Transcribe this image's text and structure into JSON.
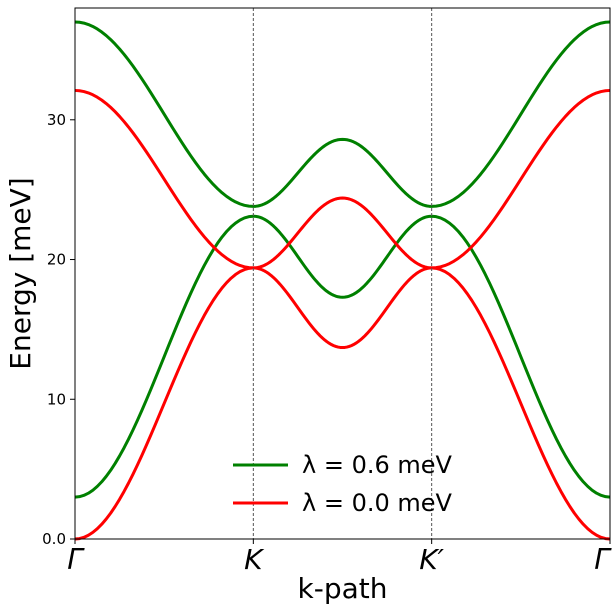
{
  "chart_data": {
    "type": "line",
    "xlabel": "k-path",
    "ylabel": "Energy [meV]",
    "ylim": [
      0,
      38
    ],
    "x_ticks": [
      "Γ",
      "K",
      "K′",
      "Γ"
    ],
    "y_ticks": [
      "0.0",
      "10",
      "20",
      "30"
    ],
    "grid": false,
    "vlines_at": [
      "K",
      "K′"
    ],
    "legend_position": "bottom-center",
    "colors": {
      "green": "#008000",
      "red": "#ff0000"
    },
    "series": [
      {
        "name": "λ = 0.6 meV",
        "color": "#008000",
        "bands": [
          {
            "band": "upper",
            "points": [
              [
                "Γ",
                37.0
              ],
              [
                "K",
                23.8
              ],
              [
                "mid",
                28.6
              ],
              [
                "K′",
                23.8
              ],
              [
                "Γ",
                37.0
              ]
            ]
          },
          {
            "band": "lower",
            "points": [
              [
                "Γ",
                3.0
              ],
              [
                "K",
                23.1
              ],
              [
                "mid",
                17.3
              ],
              [
                "K′",
                23.1
              ],
              [
                "Γ",
                3.0
              ]
            ]
          }
        ]
      },
      {
        "name": "λ = 0.0 meV",
        "color": "#ff0000",
        "bands": [
          {
            "band": "upper",
            "points": [
              [
                "Γ",
                32.1
              ],
              [
                "K",
                19.4
              ],
              [
                "mid",
                13.7
              ],
              [
                "K′",
                19.4
              ],
              [
                "Γ",
                0.0
              ]
            ]
          },
          {
            "band": "lower",
            "points": [
              [
                "Γ",
                0.0
              ],
              [
                "K",
                19.4
              ],
              [
                "mid",
                24.4
              ],
              [
                "K′",
                19.4
              ],
              [
                "Γ",
                32.1
              ]
            ]
          }
        ]
      }
    ],
    "legend": [
      {
        "label": "λ = 0.6 meV",
        "color": "#008000"
      },
      {
        "label": "λ = 0.0 meV",
        "color": "#ff0000"
      }
    ]
  }
}
